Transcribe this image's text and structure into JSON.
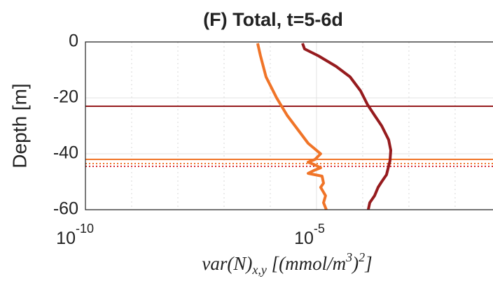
{
  "chart_data": {
    "type": "line",
    "title": "(F) Total, t=5-6d",
    "xlabel": [
      {
        "text": "var(N)"
      },
      {
        "text": "x,y",
        "sub": true
      },
      {
        "text": " [(mmol/m"
      },
      {
        "text": "3",
        "sup": true
      },
      {
        "text": ")"
      },
      {
        "text": "2",
        "sup": true
      },
      {
        "text": "]"
      }
    ],
    "ylabel": "Depth [m]",
    "xscale": "log",
    "xlim": [
      1e-10,
      0.066
    ],
    "ylim": [
      -60,
      0
    ],
    "xticks": [
      {
        "value": 1e-10,
        "label": "10",
        "exponent": "-10"
      },
      {
        "value": 1e-05,
        "label": "10",
        "exponent": "-5"
      }
    ],
    "xminor": [
      1e-09,
      1e-08,
      1e-07,
      1e-06,
      0.0001,
      0.001,
      0.01
    ],
    "yticks": [
      0,
      -20,
      -40,
      -60
    ],
    "grid": true,
    "series": [
      {
        "color": "#f07428",
        "x": [
          5.33e-07,
          6.14e-07,
          8.1e-07,
          1.37e-06,
          2.31e-06,
          3.9e-06,
          6.58e-06,
          1e-05,
          1.23e-05,
          9.3e-06,
          6.58e-06,
          9.3e-06,
          1.23e-05,
          8.7e-06,
          6.58e-06,
          1.32e-05,
          1.42e-05,
          1.23e-05,
          1.57e-05,
          1.42e-05,
          1.63e-05
        ],
        "y": [
          -0.5,
          -5,
          -12.5,
          -20,
          -26.25,
          -31.25,
          -36.25,
          -38.75,
          -40,
          -42,
          -43,
          -44,
          -45,
          -46,
          -47,
          -48,
          -50.5,
          -52,
          -55,
          -57.5,
          -60
        ]
      },
      {
        "color": "#961b1e",
        "x": [
          4.98e-06,
          5.52e-06,
          1.11e-05,
          2.66e-05,
          5.33e-05,
          9e-05,
          0.000128,
          0.000181,
          0.000257,
          0.000364,
          0.000404,
          0.00039,
          0.000327,
          0.000257,
          0.000215,
          0.000181,
          0.000142,
          0.000132
        ],
        "y": [
          -0.5,
          -2.5,
          -5,
          -8.75,
          -12.5,
          -17.5,
          -22.5,
          -26.25,
          -30,
          -35,
          -38.75,
          -42.5,
          -47.5,
          -50,
          -52,
          -55,
          -57.5,
          -60
        ]
      }
    ],
    "hlines": [
      {
        "y": -23,
        "color": "#961b1e",
        "style": "solid"
      },
      {
        "y": -42,
        "color": "#f07428",
        "style": "solid"
      },
      {
        "y": -43.5,
        "color": "#f07428",
        "style": "dotted"
      },
      {
        "y": -44.5,
        "color": "#d4232a",
        "style": "dotted"
      }
    ]
  }
}
